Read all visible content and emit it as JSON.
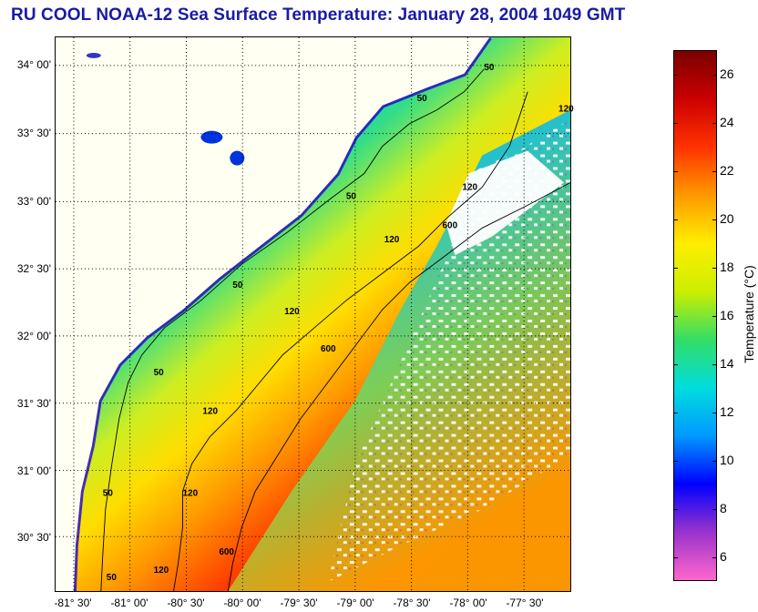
{
  "title": "RU COOL  NOAA-12  Sea Surface Temperature:  January 28, 2004 1049 GMT",
  "map": {
    "lat_labels": [
      "34° 00'",
      "33° 30'",
      "33° 00'",
      "32° 30'",
      "32° 00'",
      "31° 30'",
      "31° 00'",
      "30° 30'"
    ],
    "lon_labels": [
      "-81° 30'",
      "-81° 00'",
      "-80° 30'",
      "-80° 00'",
      "-79° 30'",
      "-79° 00'",
      "-78° 30'",
      "-78° 00'",
      "-77° 30'"
    ],
    "contour_labels": [
      "50",
      "50",
      "50",
      "50",
      "50",
      "50",
      "50",
      "120",
      "120",
      "120",
      "120",
      "120",
      "120",
      "120",
      "600",
      "600",
      "600"
    ],
    "land_color": "#fffff2",
    "grid": "dotted"
  },
  "colorbar": {
    "title": "Temperature (°C)",
    "min": 5,
    "max": 27,
    "ticks": [
      "26",
      "24",
      "22",
      "20",
      "18",
      "16",
      "14",
      "12",
      "10",
      "8",
      "6"
    ],
    "colors": [
      "#ff66cc",
      "#9933cc",
      "#0000ff",
      "#0099ff",
      "#00dddd",
      "#33dd66",
      "#ccee00",
      "#ffee00",
      "#ff9900",
      "#ff3300",
      "#cc0000",
      "#7a0000"
    ]
  }
}
